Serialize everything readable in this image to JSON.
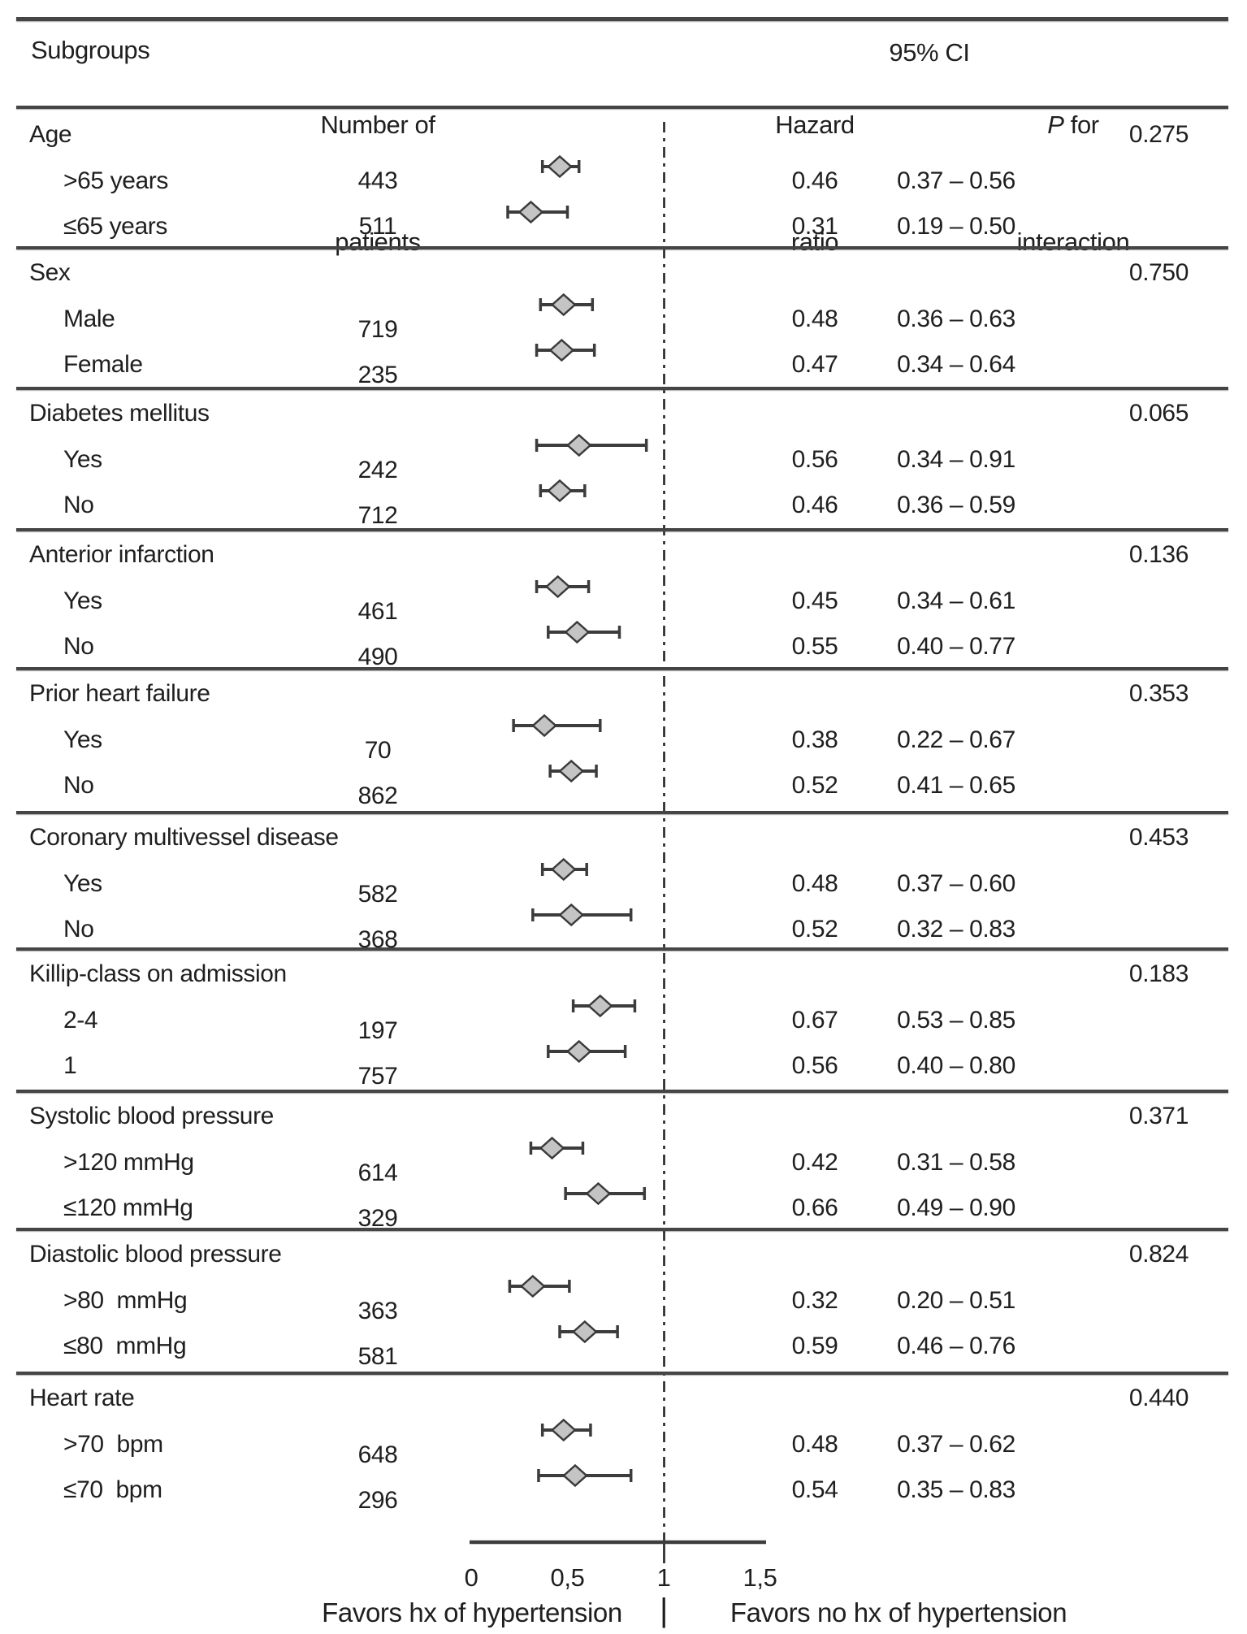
{
  "header": {
    "col_subgroups": "Subgroups",
    "col_n_line1": "Number of",
    "col_n_line2": "patients",
    "col_hr_line1": "Hazard",
    "col_hr_line2": "ratio",
    "col_ci": "95% CI",
    "col_p_italic": "P",
    "col_p_rest": " for",
    "col_p_line2": "interaction"
  },
  "axis": {
    "ticks": [
      {
        "label": "0",
        "value": 0
      },
      {
        "label": "0,5",
        "value": 0.5
      },
      {
        "label": "1",
        "value": 1
      },
      {
        "label": "1,5",
        "value": 1.5
      }
    ],
    "left_label": "Favors hx of hypertension",
    "divider": "|",
    "right_label": "Favors no hx of hypertension"
  },
  "chart_data": {
    "type": "forest",
    "x_scale": "hazard ratio",
    "xlim": [
      0,
      1.55
    ],
    "reference_line": 1,
    "grid": false,
    "marker": "diamond",
    "groups": [
      {
        "name": "Age",
        "p_interaction": "0.275",
        "rows": [
          {
            "label": ">65 years",
            "n": "443",
            "hr": 0.46,
            "ci_low": 0.37,
            "ci_high": 0.56,
            "hr_text": "0.46",
            "ci_text": "0.37 – 0.56"
          },
          {
            "label": "≤65 years",
            "n": "511",
            "hr": 0.31,
            "ci_low": 0.19,
            "ci_high": 0.5,
            "hr_text": "0.31",
            "ci_text": "0.19 – 0.50"
          }
        ]
      },
      {
        "name": "Sex",
        "p_interaction": "0.750",
        "rows": [
          {
            "label": "Male",
            "n": "719",
            "hr": 0.48,
            "ci_low": 0.36,
            "ci_high": 0.63,
            "hr_text": "0.48",
            "ci_text": "0.36 – 0.63"
          },
          {
            "label": "Female",
            "n": "235",
            "hr": 0.47,
            "ci_low": 0.34,
            "ci_high": 0.64,
            "hr_text": "0.47",
            "ci_text": "0.34 – 0.64"
          }
        ]
      },
      {
        "name": "Diabetes mellitus",
        "p_interaction": "0.065",
        "rows": [
          {
            "label": "Yes",
            "n": "242",
            "hr": 0.56,
            "ci_low": 0.34,
            "ci_high": 0.91,
            "hr_text": "0.56",
            "ci_text": "0.34 – 0.91"
          },
          {
            "label": "No",
            "n": "712",
            "hr": 0.46,
            "ci_low": 0.36,
            "ci_high": 0.59,
            "hr_text": "0.46",
            "ci_text": "0.36 – 0.59"
          }
        ]
      },
      {
        "name": "Anterior infarction",
        "p_interaction": "0.136",
        "rows": [
          {
            "label": "Yes",
            "n": "461",
            "hr": 0.45,
            "ci_low": 0.34,
            "ci_high": 0.61,
            "hr_text": "0.45",
            "ci_text": "0.34 – 0.61"
          },
          {
            "label": "No",
            "n": "490",
            "hr": 0.55,
            "ci_low": 0.4,
            "ci_high": 0.77,
            "hr_text": "0.55",
            "ci_text": "0.40 – 0.77"
          }
        ]
      },
      {
        "name": "Prior heart failure",
        "p_interaction": "0.353",
        "rows": [
          {
            "label": "Yes",
            "n": "70",
            "hr": 0.38,
            "ci_low": 0.22,
            "ci_high": 0.67,
            "hr_text": "0.38",
            "ci_text": "0.22 – 0.67"
          },
          {
            "label": "No",
            "n": "862",
            "hr": 0.52,
            "ci_low": 0.41,
            "ci_high": 0.65,
            "hr_text": "0.52",
            "ci_text": "0.41 – 0.65"
          }
        ]
      },
      {
        "name": "Coronary multivessel disease",
        "p_interaction": "0.453",
        "rows": [
          {
            "label": "Yes",
            "n": "582",
            "hr": 0.48,
            "ci_low": 0.37,
            "ci_high": 0.6,
            "hr_text": "0.48",
            "ci_text": "0.37 – 0.60"
          },
          {
            "label": "No",
            "n": "368",
            "hr": 0.52,
            "ci_low": 0.32,
            "ci_high": 0.83,
            "hr_text": "0.52",
            "ci_text": "0.32 – 0.83"
          }
        ]
      },
      {
        "name": "Killip-class on admission",
        "p_interaction": "0.183",
        "rows": [
          {
            "label": "2-4",
            "n": "197",
            "hr": 0.67,
            "ci_low": 0.53,
            "ci_high": 0.85,
            "hr_text": "0.67",
            "ci_text": "0.53 – 0.85"
          },
          {
            "label": "1",
            "n": "757",
            "hr": 0.56,
            "ci_low": 0.4,
            "ci_high": 0.8,
            "hr_text": "0.56",
            "ci_text": "0.40 – 0.80"
          }
        ]
      },
      {
        "name": "Systolic blood pressure",
        "p_interaction": "0.371",
        "rows": [
          {
            "label": ">120 mmHg",
            "n": "614",
            "hr": 0.42,
            "ci_low": 0.31,
            "ci_high": 0.58,
            "hr_text": "0.42",
            "ci_text": "0.31 – 0.58"
          },
          {
            "label": "≤120 mmHg",
            "n": "329",
            "hr": 0.66,
            "ci_low": 0.49,
            "ci_high": 0.9,
            "hr_text": "0.66",
            "ci_text": "0.49 – 0.90"
          }
        ]
      },
      {
        "name": "Diastolic blood pressure",
        "p_interaction": "0.824",
        "rows": [
          {
            "label": ">80  mmHg",
            "n": "363",
            "hr": 0.32,
            "ci_low": 0.2,
            "ci_high": 0.51,
            "hr_text": "0.32",
            "ci_text": "0.20 – 0.51"
          },
          {
            "label": "≤80  mmHg",
            "n": "581",
            "hr": 0.59,
            "ci_low": 0.46,
            "ci_high": 0.76,
            "hr_text": "0.59",
            "ci_text": "0.46 – 0.76"
          }
        ]
      },
      {
        "name": "Heart rate",
        "p_interaction": "0.440",
        "rows": [
          {
            "label": ">70  bpm",
            "n": "648",
            "hr": 0.48,
            "ci_low": 0.37,
            "ci_high": 0.62,
            "hr_text": "0.48",
            "ci_text": "0.37 – 0.62"
          },
          {
            "label": "≤70  bpm",
            "n": "296",
            "hr": 0.54,
            "ci_low": 0.35,
            "ci_high": 0.83,
            "hr_text": "0.54",
            "ci_text": "0.35 – 0.83"
          }
        ]
      }
    ]
  }
}
